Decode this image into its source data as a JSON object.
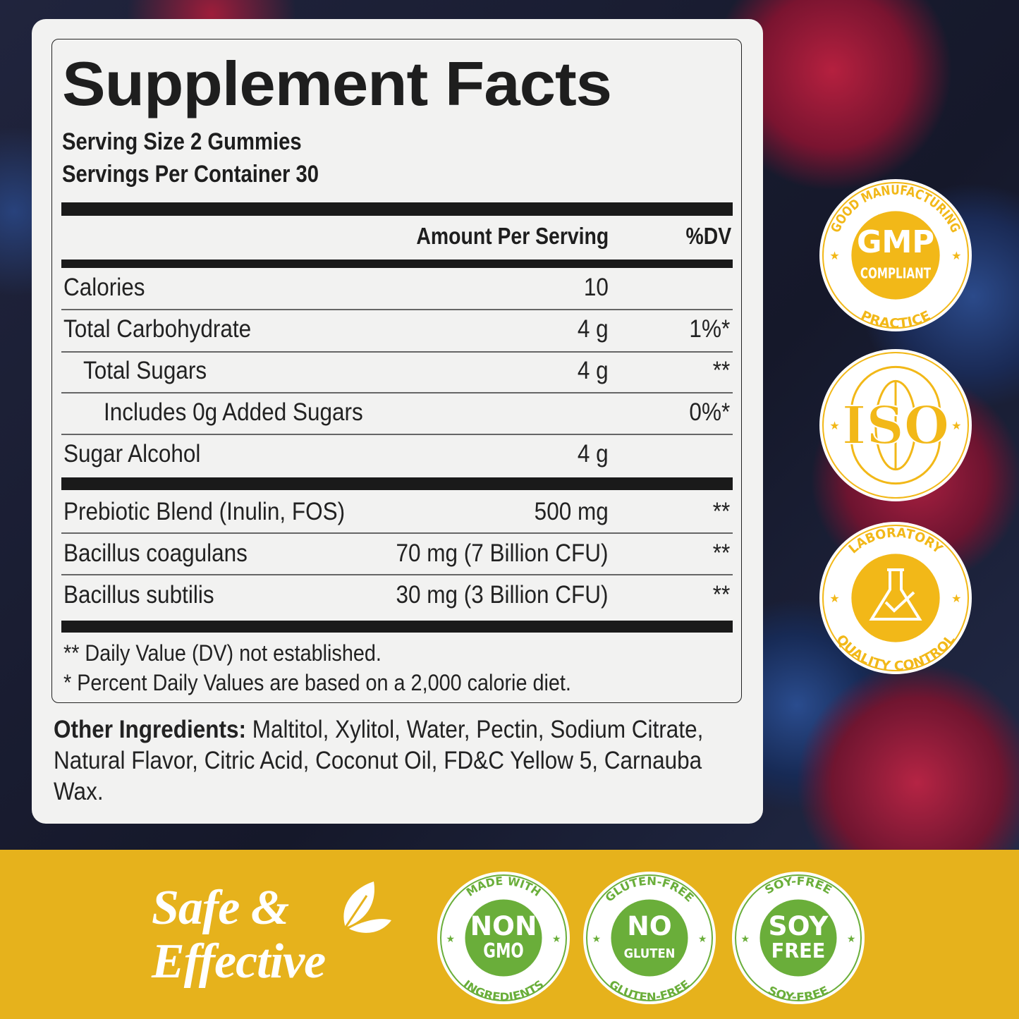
{
  "title": "Supplement Facts",
  "serving_size": "Serving Size 2 Gummies",
  "servings_per_container": "Servings Per Container 30",
  "header": {
    "amount": "Amount Per Serving",
    "dv": "%DV"
  },
  "rows": [
    {
      "label": "Calories",
      "amount": "10",
      "dv": ""
    },
    {
      "label": "Total Carbohydrate",
      "amount": "4 g",
      "dv": "1%*"
    },
    {
      "label": "Total Sugars",
      "amount": "4 g",
      "dv": "**"
    },
    {
      "label": "Includes 0g Added Sugars",
      "amount": "",
      "dv": "0%*"
    },
    {
      "label": "Sugar Alcohol",
      "amount": "4 g",
      "dv": ""
    },
    {
      "label": "Prebiotic Blend (Inulin, FOS)",
      "amount": "500 mg",
      "dv": "**"
    },
    {
      "label": "Bacillus coagulans",
      "amount": "70 mg (7 Billion CFU)",
      "dv": "**"
    },
    {
      "label": "Bacillus subtilis",
      "amount": "30 mg (3 Billion CFU)",
      "dv": "**"
    }
  ],
  "footnotes": [
    "** Daily Value (DV) not established.",
    "* Percent Daily Values are based on a 2,000 calorie diet."
  ],
  "other_ingredients": {
    "label": "Other Ingredients:",
    "text": " Maltitol, Xylitol, Water, Pectin, Sodium Citrate, Natural Flavor, Citric Acid, Coconut Oil, FD&C Yellow 5, Carnauba Wax."
  },
  "tagline": {
    "line1": "Safe &",
    "line2": "Effective"
  },
  "colors": {
    "badge_yellow": "#f2b818",
    "badge_green": "#6aae3a",
    "band": "#e6b21c"
  },
  "badges_right": [
    {
      "top": "GOOD MANUFACTURING",
      "bottom": "PRACTICE",
      "center1": "GMP",
      "center2": "COMPLIANT",
      "icon": "gmp-seal"
    },
    {
      "top": "",
      "bottom": "",
      "center1": "ISO",
      "center2": "",
      "icon": "globe-icon"
    },
    {
      "top": "LABORATORY",
      "bottom": "QUALITY CONTROL",
      "center1": "",
      "center2": "",
      "icon": "flask-check-icon"
    }
  ],
  "badges_bottom": [
    {
      "top": "MADE WITH",
      "bottom": "INGREDIENTS",
      "center1": "NON",
      "center2": "GMO"
    },
    {
      "top": "GLUTEN-FREE",
      "bottom": "GLUTEN-FREE",
      "center1": "NO",
      "center2": "GLUTEN"
    },
    {
      "top": "SOY-FREE",
      "bottom": "SOY-FREE",
      "center1": "SOY",
      "center2": "FREE"
    }
  ]
}
